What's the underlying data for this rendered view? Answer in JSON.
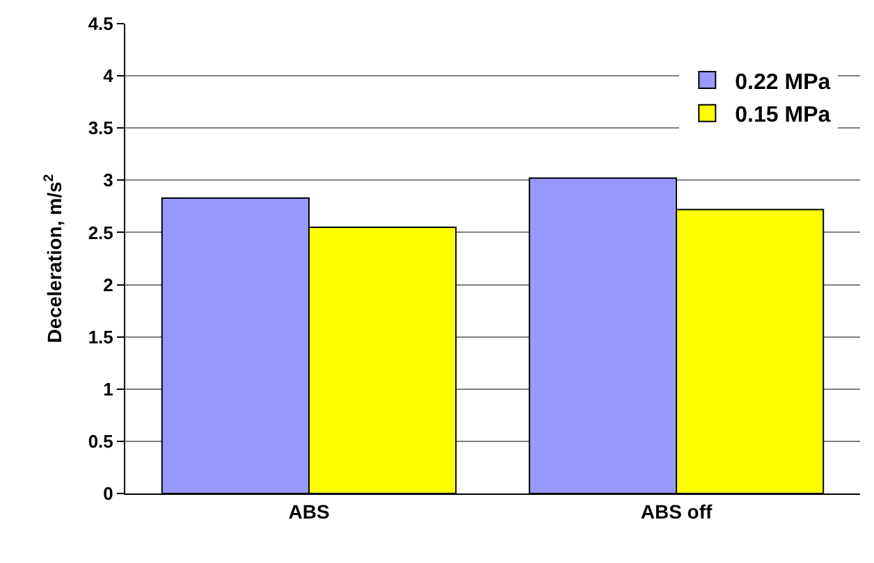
{
  "chart_data": {
    "type": "bar",
    "categories": [
      "ABS",
      "ABS off"
    ],
    "ylabel": "Deceleration, m/s$^{2}$",
    "series": [
      {
        "name": "0.22 MPa",
        "color": "#9999ff",
        "values": [
          2.83,
          3.02
        ]
      },
      {
        "name": "0.15 MPa",
        "color": "#ffff00",
        "values": [
          2.55,
          2.72
        ]
      }
    ],
    "ylim": [
      0,
      4.5
    ],
    "yticks": [
      0,
      0.5,
      1,
      1.5,
      2,
      2.5,
      3,
      3.5,
      4,
      4.5
    ],
    "grid": "y",
    "legend": "top right"
  }
}
